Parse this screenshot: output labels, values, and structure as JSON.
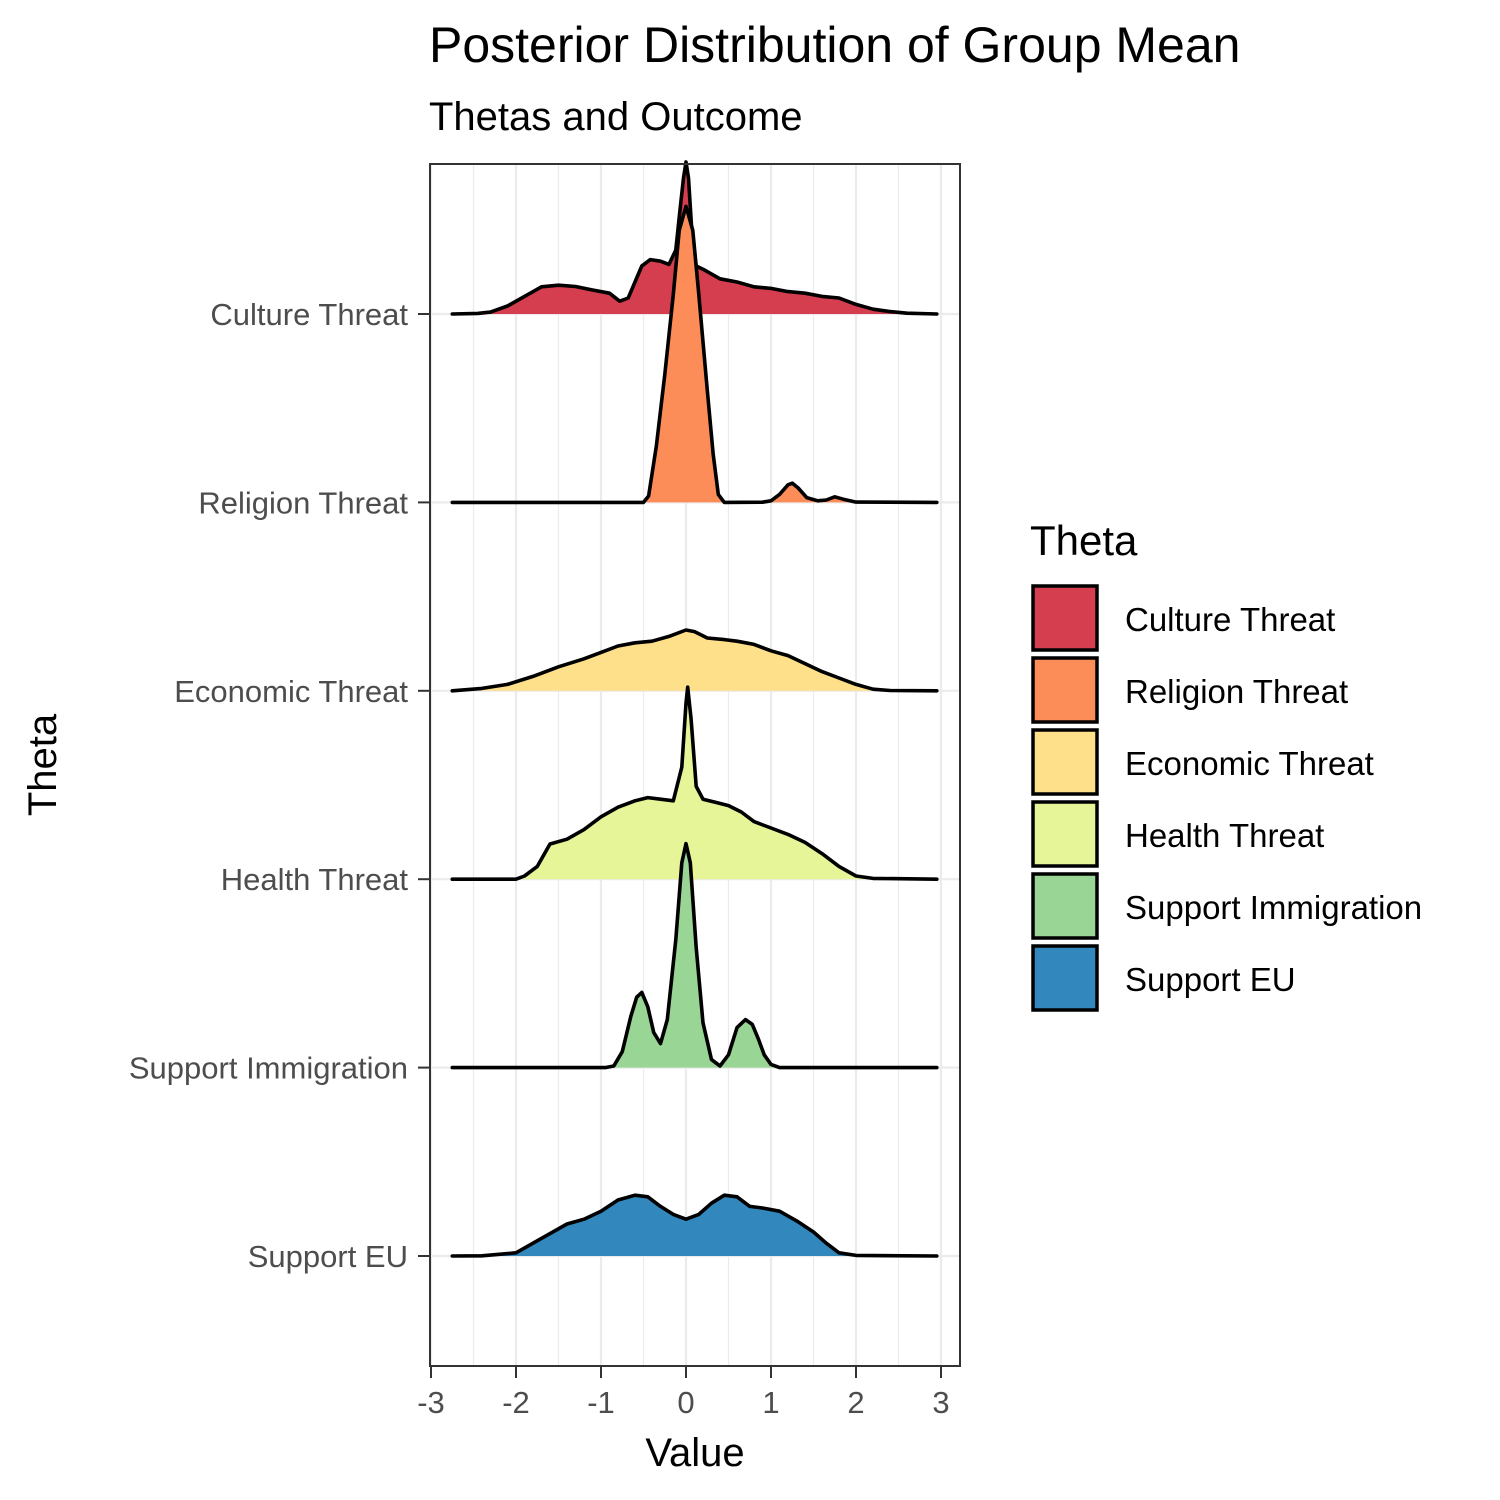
{
  "chart_data": {
    "type": "ridgeline",
    "title": "Posterior Distribution of Group Mean",
    "subtitle": "Thetas and Outcome",
    "xlabel": "Value",
    "ylabel": "Theta",
    "xlim": [
      -3,
      3
    ],
    "x_ticks": [
      "-3",
      "-2",
      "-1",
      "0",
      "1",
      "2",
      "3"
    ],
    "grid": true,
    "legend": {
      "title": "Theta",
      "position": "right"
    },
    "series": [
      {
        "name": "Culture Threat",
        "color": "#d53e4f",
        "density": [
          [
            -2.75,
            0
          ],
          [
            -2.45,
            0.004
          ],
          [
            -2.3,
            0.012
          ],
          [
            -2.1,
            0.05
          ],
          [
            -1.9,
            0.11
          ],
          [
            -1.7,
            0.17
          ],
          [
            -1.5,
            0.18
          ],
          [
            -1.3,
            0.172
          ],
          [
            -1.1,
            0.15
          ],
          [
            -0.9,
            0.13
          ],
          [
            -0.78,
            0.08
          ],
          [
            -0.68,
            0.1
          ],
          [
            -0.6,
            0.2
          ],
          [
            -0.52,
            0.3
          ],
          [
            -0.42,
            0.34
          ],
          [
            -0.3,
            0.33
          ],
          [
            -0.2,
            0.31
          ],
          [
            -0.12,
            0.4
          ],
          [
            -0.07,
            0.65
          ],
          [
            -0.03,
            0.85
          ],
          [
            0,
            0.95
          ],
          [
            0.03,
            0.85
          ],
          [
            0.07,
            0.5
          ],
          [
            0.12,
            0.3
          ],
          [
            0.2,
            0.28
          ],
          [
            0.4,
            0.22
          ],
          [
            0.6,
            0.2
          ],
          [
            0.8,
            0.17
          ],
          [
            1.0,
            0.16
          ],
          [
            1.2,
            0.14
          ],
          [
            1.4,
            0.13
          ],
          [
            1.6,
            0.11
          ],
          [
            1.8,
            0.1
          ],
          [
            2.0,
            0.06
          ],
          [
            2.2,
            0.03
          ],
          [
            2.4,
            0.015
          ],
          [
            2.6,
            0.005
          ],
          [
            2.95,
            0
          ]
        ]
      },
      {
        "name": "Religion Threat",
        "color": "#fc8d59",
        "density": [
          [
            -2.75,
            0
          ],
          [
            -0.5,
            0
          ],
          [
            -0.44,
            0.04
          ],
          [
            -0.35,
            0.35
          ],
          [
            -0.25,
            0.8
          ],
          [
            -0.15,
            1.3
          ],
          [
            -0.08,
            1.7
          ],
          [
            0,
            1.85
          ],
          [
            0.08,
            1.7
          ],
          [
            0.15,
            1.3
          ],
          [
            0.25,
            0.7
          ],
          [
            0.32,
            0.3
          ],
          [
            0.38,
            0.05
          ],
          [
            0.45,
            0
          ],
          [
            0.9,
            0.001
          ],
          [
            1.0,
            0.01
          ],
          [
            1.1,
            0.05
          ],
          [
            1.2,
            0.11
          ],
          [
            1.25,
            0.12
          ],
          [
            1.32,
            0.09
          ],
          [
            1.42,
            0.03
          ],
          [
            1.55,
            0.01
          ],
          [
            1.65,
            0.015
          ],
          [
            1.75,
            0.035
          ],
          [
            1.85,
            0.02
          ],
          [
            2.0,
            0.002
          ],
          [
            2.95,
            0
          ]
        ]
      },
      {
        "name": "Economic Threat",
        "color": "#fee08b",
        "density": [
          [
            -2.75,
            0
          ],
          [
            -2.4,
            0.015
          ],
          [
            -2.1,
            0.04
          ],
          [
            -1.8,
            0.09
          ],
          [
            -1.5,
            0.15
          ],
          [
            -1.2,
            0.2
          ],
          [
            -1.0,
            0.24
          ],
          [
            -0.8,
            0.28
          ],
          [
            -0.6,
            0.3
          ],
          [
            -0.4,
            0.31
          ],
          [
            -0.2,
            0.34
          ],
          [
            0,
            0.38
          ],
          [
            0.1,
            0.37
          ],
          [
            0.25,
            0.33
          ],
          [
            0.45,
            0.32
          ],
          [
            0.6,
            0.31
          ],
          [
            0.8,
            0.29
          ],
          [
            1.0,
            0.25
          ],
          [
            1.2,
            0.22
          ],
          [
            1.4,
            0.17
          ],
          [
            1.6,
            0.12
          ],
          [
            1.8,
            0.08
          ],
          [
            2.0,
            0.04
          ],
          [
            2.2,
            0.01
          ],
          [
            2.4,
            0.002
          ],
          [
            2.95,
            0
          ]
        ]
      },
      {
        "name": "Health Threat",
        "color": "#e6f598",
        "density": [
          [
            -2.75,
            0
          ],
          [
            -2.0,
            0
          ],
          [
            -1.9,
            0.02
          ],
          [
            -1.75,
            0.08
          ],
          [
            -1.6,
            0.22
          ],
          [
            -1.4,
            0.25
          ],
          [
            -1.2,
            0.31
          ],
          [
            -1.0,
            0.39
          ],
          [
            -0.8,
            0.45
          ],
          [
            -0.6,
            0.49
          ],
          [
            -0.45,
            0.51
          ],
          [
            -0.3,
            0.5
          ],
          [
            -0.15,
            0.49
          ],
          [
            -0.05,
            0.7
          ],
          [
            0,
            1.1
          ],
          [
            0.02,
            1.2
          ],
          [
            0.06,
            1.0
          ],
          [
            0.12,
            0.58
          ],
          [
            0.2,
            0.5
          ],
          [
            0.35,
            0.48
          ],
          [
            0.5,
            0.46
          ],
          [
            0.65,
            0.42
          ],
          [
            0.8,
            0.36
          ],
          [
            1.0,
            0.32
          ],
          [
            1.2,
            0.28
          ],
          [
            1.4,
            0.23
          ],
          [
            1.6,
            0.16
          ],
          [
            1.8,
            0.08
          ],
          [
            2.0,
            0.02
          ],
          [
            2.2,
            0.005
          ],
          [
            2.95,
            0
          ]
        ]
      },
      {
        "name": "Support Immigration",
        "color": "#99d594",
        "density": [
          [
            -2.75,
            0
          ],
          [
            -0.95,
            0
          ],
          [
            -0.85,
            0.01
          ],
          [
            -0.75,
            0.1
          ],
          [
            -0.65,
            0.32
          ],
          [
            -0.58,
            0.44
          ],
          [
            -0.52,
            0.47
          ],
          [
            -0.45,
            0.38
          ],
          [
            -0.38,
            0.22
          ],
          [
            -0.3,
            0.15
          ],
          [
            -0.22,
            0.3
          ],
          [
            -0.12,
            0.8
          ],
          [
            -0.05,
            1.28
          ],
          [
            0,
            1.4
          ],
          [
            0.05,
            1.28
          ],
          [
            0.12,
            0.75
          ],
          [
            0.2,
            0.28
          ],
          [
            0.3,
            0.05
          ],
          [
            0.4,
            0.01
          ],
          [
            0.5,
            0.08
          ],
          [
            0.6,
            0.25
          ],
          [
            0.7,
            0.3
          ],
          [
            0.78,
            0.27
          ],
          [
            0.85,
            0.18
          ],
          [
            0.92,
            0.08
          ],
          [
            1.0,
            0.02
          ],
          [
            1.1,
            0
          ],
          [
            2.95,
            0
          ]
        ]
      },
      {
        "name": "Support EU",
        "color": "#3288bd",
        "density": [
          [
            -2.75,
            0
          ],
          [
            -2.4,
            0.001
          ],
          [
            -2.0,
            0.02
          ],
          [
            -1.8,
            0.08
          ],
          [
            -1.6,
            0.14
          ],
          [
            -1.4,
            0.2
          ],
          [
            -1.2,
            0.23
          ],
          [
            -1.0,
            0.28
          ],
          [
            -0.8,
            0.35
          ],
          [
            -0.6,
            0.38
          ],
          [
            -0.45,
            0.37
          ],
          [
            -0.3,
            0.31
          ],
          [
            -0.15,
            0.26
          ],
          [
            0,
            0.23
          ],
          [
            0.15,
            0.26
          ],
          [
            0.3,
            0.33
          ],
          [
            0.45,
            0.38
          ],
          [
            0.6,
            0.37
          ],
          [
            0.75,
            0.31
          ],
          [
            0.9,
            0.3
          ],
          [
            1.1,
            0.28
          ],
          [
            1.3,
            0.22
          ],
          [
            1.5,
            0.15
          ],
          [
            1.65,
            0.08
          ],
          [
            1.8,
            0.02
          ],
          [
            2.0,
            0.004
          ],
          [
            2.95,
            0
          ]
        ]
      }
    ]
  }
}
